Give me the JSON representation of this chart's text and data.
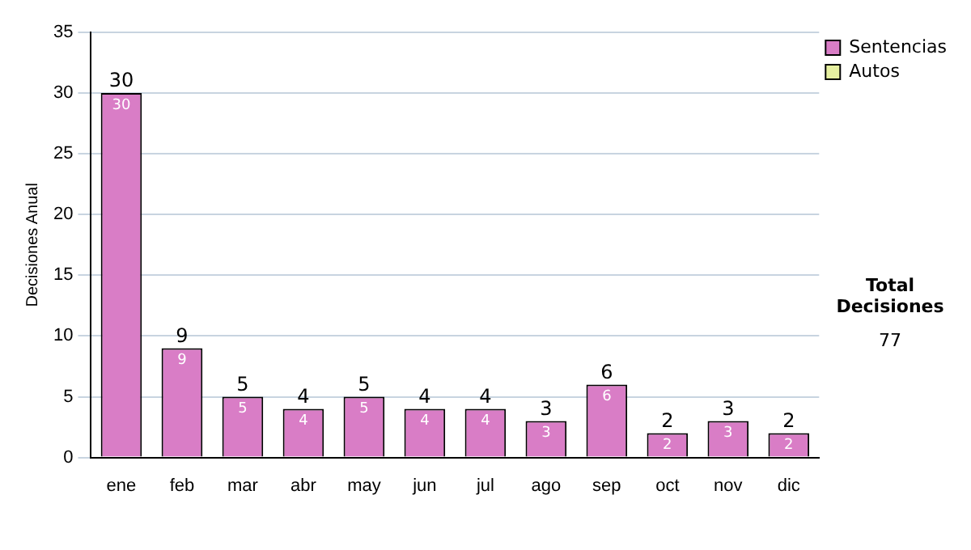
{
  "chart_data": {
    "type": "bar",
    "stacked": true,
    "ylabel": "Decisiones Anual",
    "categories": [
      "ene",
      "feb",
      "mar",
      "abr",
      "may",
      "jun",
      "jul",
      "ago",
      "sep",
      "oct",
      "nov",
      "dic"
    ],
    "series": [
      {
        "name": "Sentencias",
        "color": "#d97dc6",
        "values": [
          30,
          9,
          5,
          4,
          5,
          4,
          4,
          3,
          6,
          2,
          3,
          2
        ],
        "value_labels": [
          "30",
          "9",
          "5",
          "4",
          "5",
          "4",
          "4",
          "3",
          "6",
          "2",
          "3",
          "2"
        ]
      },
      {
        "name": "Autos",
        "color": "#e6f0a0",
        "values": [
          0,
          0,
          0,
          0,
          0,
          0,
          0,
          0,
          0,
          0,
          0,
          0
        ]
      }
    ],
    "totals": [
      "30",
      "9",
      "5",
      "4",
      "5",
      "4",
      "4",
      "3",
      "6",
      "2",
      "3",
      "2"
    ],
    "ylim": [
      0,
      35
    ],
    "yticks": [
      0,
      5,
      10,
      15,
      20,
      25,
      30,
      35
    ],
    "grid": "y",
    "legend": "right",
    "annotations": [
      "Total Decisiones",
      "77"
    ]
  }
}
